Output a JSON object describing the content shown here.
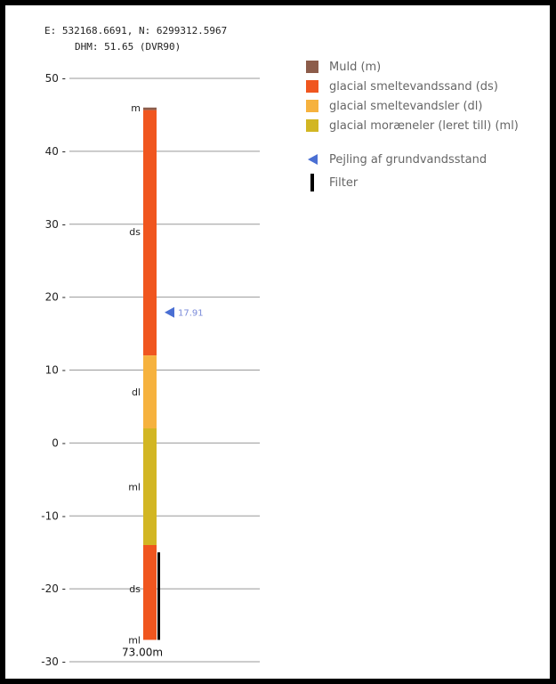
{
  "header": {
    "coords": "E: 532168.6691, N: 6299312.5967",
    "dhm": "DHM: 51.65 (DVR90)"
  },
  "chart_data": {
    "type": "bar",
    "ylim": [
      -30,
      50
    ],
    "y_ticks": [
      50,
      40,
      30,
      20,
      10,
      0,
      -10,
      -20,
      -30
    ],
    "grid": true,
    "legend_position": "right",
    "layers": [
      {
        "code": "m",
        "name": "Muld (m)",
        "top": 46.0,
        "bottom": 45.65,
        "color": "#8c5c4a",
        "label_at": 46.0
      },
      {
        "code": "ds",
        "name": "glacial smeltevandssand (ds)",
        "top": 45.65,
        "bottom": 12.0,
        "color": "#f0561f",
        "label_at": 29.0
      },
      {
        "code": "dl",
        "name": "glacial smeltevandsler (dl)",
        "top": 12.0,
        "bottom": 2.0,
        "color": "#f6b23e",
        "label_at": 7.0
      },
      {
        "code": "ml",
        "name": "glacial moræneler (leret till) (ml)",
        "top": 2.0,
        "bottom": -14.0,
        "color": "#d2b623",
        "label_at": -6.0
      },
      {
        "code": "ds",
        "name": "glacial smeltevandssand (ds)",
        "top": -14.0,
        "bottom": -27.0,
        "color": "#f0561f",
        "label_at": -20.0
      },
      {
        "code": "ml",
        "name": "glacial moræneler (leret till) (ml)",
        "top": -27.0,
        "bottom": -27.0,
        "color": "#d2b623",
        "label_at": -27.0
      }
    ],
    "water_level": {
      "name": "Pejling af grundvandsstand",
      "value": 17.91,
      "label": "17.91",
      "color": "#4a6fd3"
    },
    "filter": {
      "name": "Filter",
      "top": -15.0,
      "bottom": -27.0,
      "color": "#000000"
    },
    "total_depth_label": "73.00m",
    "legend": [
      {
        "label": "Muld (m)",
        "color": "#8c5c4a"
      },
      {
        "label": "glacial smeltevandssand (ds)",
        "color": "#f0561f"
      },
      {
        "label": "glacial smeltevandsler (dl)",
        "color": "#f6b23e"
      },
      {
        "label": "glacial moræneler (leret till) (ml)",
        "color": "#d2b623"
      }
    ],
    "legend_symbols": [
      {
        "label": "Pejling af grundvandsstand",
        "icon": "triangle-left-icon",
        "color": "#4a6fd3"
      },
      {
        "label": "Filter",
        "icon": "vertical-bar-icon",
        "color": "#000000"
      }
    ]
  }
}
